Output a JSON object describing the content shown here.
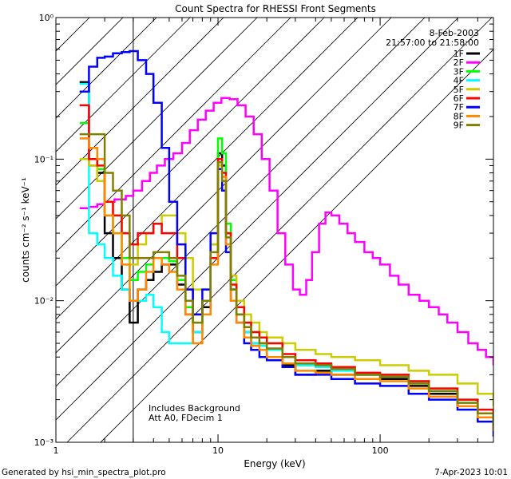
{
  "chart_data": {
    "type": "line",
    "title": "Count Spectra for RHESSI Front Segments",
    "xlabel": "Energy (keV)",
    "ylabel": "counts cm⁻² s⁻¹ keV⁻¹",
    "xscale": "log",
    "yscale": "log",
    "xlim": [
      1,
      500
    ],
    "ylim": [
      0.001,
      1
    ],
    "x_ticks": [
      {
        "value": 1,
        "label": "1"
      },
      {
        "value": 10,
        "label": "10"
      },
      {
        "value": 100,
        "label": "100"
      }
    ],
    "y_ticks": [
      {
        "value": 1,
        "label": "10⁰"
      },
      {
        "value": 0.1,
        "label": "10⁻¹"
      },
      {
        "value": 0.01,
        "label": "10⁻²"
      },
      {
        "value": 0.001,
        "label": "10⁻³"
      }
    ],
    "date": "8-Feb-2003",
    "time_range": "21:57:00 to 21:58:00",
    "annotations": [
      "Includes Background",
      "Att A0, FDecim 1"
    ],
    "excluded_region_keV": [
      1,
      3
    ],
    "legend_position": "top-right",
    "series": [
      {
        "name": "1F",
        "color": "#000000",
        "x": [
          1.4,
          1.6,
          1.8,
          2.0,
          2.25,
          2.55,
          2.85,
          3.2,
          3.6,
          4.0,
          4.5,
          5.0,
          5.6,
          6.3,
          7.0,
          8.0,
          9.0,
          10.0,
          10.6,
          11.2,
          12.0,
          13.0,
          14.5,
          16.0,
          18.0,
          20.0,
          25.0,
          30.0,
          40.0,
          50.0,
          70.0,
          100.0,
          150.0,
          200.0,
          300.0,
          400.0,
          500.0
        ],
        "y": [
          0.35,
          0.09,
          0.08,
          0.03,
          0.02,
          0.012,
          0.007,
          0.012,
          0.014,
          0.016,
          0.018,
          0.018,
          0.013,
          0.008,
          0.006,
          0.009,
          0.02,
          0.11,
          0.09,
          0.03,
          0.012,
          0.008,
          0.006,
          0.005,
          0.005,
          0.004,
          0.0035,
          0.003,
          0.0032,
          0.003,
          0.003,
          0.0028,
          0.0025,
          0.0022,
          0.0018,
          0.0015,
          0.0012
        ]
      },
      {
        "name": "2F",
        "color": "#ff00ff",
        "x": [
          1.4,
          1.6,
          1.8,
          2.0,
          2.3,
          2.7,
          3.0,
          3.4,
          3.8,
          4.2,
          4.7,
          5.3,
          6.0,
          6.7,
          7.5,
          8.4,
          9.4,
          10.5,
          11.8,
          13.2,
          14.8,
          16.6,
          18.6,
          20.8,
          23.3,
          26.0,
          29.0,
          32.0,
          35.0,
          38.0,
          42.0,
          46.0,
          50.0,
          56.0,
          63.0,
          70.0,
          80.0,
          90.0,
          100.0,
          115.0,
          130.0,
          150.0,
          175.0,
          200.0,
          230.0,
          260.0,
          300.0,
          350.0,
          400.0,
          450.0,
          500.0
        ],
        "y": [
          0.045,
          0.046,
          0.048,
          0.05,
          0.052,
          0.055,
          0.06,
          0.07,
          0.08,
          0.09,
          0.1,
          0.11,
          0.13,
          0.16,
          0.19,
          0.22,
          0.25,
          0.27,
          0.265,
          0.24,
          0.2,
          0.15,
          0.1,
          0.06,
          0.03,
          0.018,
          0.012,
          0.011,
          0.014,
          0.022,
          0.035,
          0.042,
          0.04,
          0.035,
          0.03,
          0.026,
          0.022,
          0.02,
          0.018,
          0.015,
          0.013,
          0.011,
          0.01,
          0.009,
          0.008,
          0.007,
          0.006,
          0.005,
          0.0045,
          0.004,
          0.0035
        ]
      },
      {
        "name": "3F",
        "color": "#00ff00",
        "x": [
          1.4,
          1.6,
          1.8,
          2.0,
          2.25,
          2.55,
          2.85,
          3.2,
          3.6,
          4.0,
          4.5,
          5.0,
          5.6,
          6.3,
          7.0,
          8.0,
          9.0,
          10.0,
          10.6,
          11.2,
          12.0,
          13.0,
          14.5,
          16.0,
          18.0,
          20.0,
          25.0,
          30.0,
          40.0,
          50.0,
          70.0,
          100.0,
          150.0,
          200.0,
          300.0,
          400.0,
          500.0
        ],
        "y": [
          0.18,
          0.1,
          0.085,
          0.04,
          0.03,
          0.02,
          0.014,
          0.016,
          0.018,
          0.02,
          0.02,
          0.019,
          0.014,
          0.009,
          0.007,
          0.01,
          0.025,
          0.14,
          0.11,
          0.035,
          0.014,
          0.009,
          0.007,
          0.006,
          0.0055,
          0.005,
          0.004,
          0.0035,
          0.0035,
          0.0033,
          0.003,
          0.003,
          0.0027,
          0.0024,
          0.002,
          0.0016,
          0.0013
        ]
      },
      {
        "name": "4F",
        "color": "#00ffff",
        "x": [
          1.4,
          1.6,
          1.8,
          2.0,
          2.25,
          2.55,
          2.85,
          3.2,
          3.6,
          4.0,
          4.5,
          5.0,
          5.6,
          6.3,
          7.0,
          8.0,
          9.0,
          10.0,
          10.6,
          11.2,
          12.0,
          13.0,
          14.5,
          16.0,
          18.0,
          20.0,
          25.0,
          30.0,
          40.0,
          50.0,
          70.0,
          100.0,
          150.0,
          200.0,
          300.0,
          400.0,
          500.0
        ],
        "y": [
          0.34,
          0.03,
          0.025,
          0.02,
          0.015,
          0.012,
          0.01,
          0.01,
          0.011,
          0.009,
          0.006,
          0.005,
          0.005,
          0.005,
          0.006,
          0.01,
          0.02,
          0.1,
          0.08,
          0.03,
          0.012,
          0.008,
          0.006,
          0.005,
          0.0048,
          0.0045,
          0.004,
          0.0035,
          0.0034,
          0.0032,
          0.003,
          0.0029,
          0.0026,
          0.0023,
          0.0019,
          0.0016,
          0.0013
        ]
      },
      {
        "name": "5F",
        "color": "#cccc00",
        "x": [
          1.4,
          1.6,
          1.8,
          2.0,
          2.25,
          2.55,
          2.85,
          3.2,
          3.6,
          4.0,
          4.5,
          5.0,
          5.6,
          6.3,
          7.0,
          8.0,
          9.0,
          10.0,
          10.6,
          11.2,
          12.0,
          13.0,
          14.5,
          16.0,
          18.0,
          20.0,
          25.0,
          30.0,
          40.0,
          50.0,
          70.0,
          100.0,
          150.0,
          200.0,
          300.0,
          400.0,
          500.0
        ],
        "y": [
          0.1,
          0.09,
          0.07,
          0.05,
          0.04,
          0.03,
          0.018,
          0.025,
          0.03,
          0.035,
          0.04,
          0.04,
          0.03,
          0.02,
          0.012,
          0.012,
          0.025,
          0.09,
          0.07,
          0.03,
          0.015,
          0.01,
          0.008,
          0.007,
          0.006,
          0.0055,
          0.005,
          0.0045,
          0.0042,
          0.004,
          0.0038,
          0.0035,
          0.0032,
          0.003,
          0.0026,
          0.0022,
          0.0018
        ]
      },
      {
        "name": "6F",
        "color": "#ff0000",
        "x": [
          1.4,
          1.6,
          1.8,
          2.0,
          2.25,
          2.55,
          2.85,
          3.2,
          3.6,
          4.0,
          4.5,
          5.0,
          5.6,
          6.3,
          7.0,
          8.0,
          9.0,
          10.0,
          10.6,
          11.2,
          12.0,
          13.0,
          14.5,
          16.0,
          18.0,
          20.0,
          25.0,
          30.0,
          40.0,
          50.0,
          70.0,
          100.0,
          150.0,
          200.0,
          300.0,
          400.0,
          500.0
        ],
        "y": [
          0.24,
          0.1,
          0.09,
          0.05,
          0.04,
          0.03,
          0.025,
          0.03,
          0.03,
          0.035,
          0.03,
          0.03,
          0.02,
          0.012,
          0.008,
          0.01,
          0.02,
          0.1,
          0.08,
          0.03,
          0.013,
          0.009,
          0.007,
          0.006,
          0.0055,
          0.005,
          0.0042,
          0.0038,
          0.0036,
          0.0034,
          0.0031,
          0.003,
          0.0027,
          0.0024,
          0.002,
          0.0017,
          0.0014
        ]
      },
      {
        "name": "7F",
        "color": "#0000ff",
        "x": [
          1.4,
          1.6,
          1.8,
          2.0,
          2.25,
          2.55,
          2.85,
          3.2,
          3.6,
          4.0,
          4.5,
          5.0,
          5.6,
          6.3,
          7.0,
          8.0,
          9.0,
          10.0,
          10.6,
          11.2,
          12.0,
          13.0,
          14.5,
          16.0,
          18.0,
          20.0,
          25.0,
          30.0,
          40.0,
          50.0,
          70.0,
          100.0,
          150.0,
          200.0,
          300.0,
          400.0,
          500.0
        ],
        "y": [
          0.3,
          0.45,
          0.52,
          0.53,
          0.56,
          0.57,
          0.58,
          0.5,
          0.4,
          0.25,
          0.12,
          0.05,
          0.025,
          0.012,
          0.008,
          0.012,
          0.03,
          0.085,
          0.06,
          0.022,
          0.01,
          0.007,
          0.005,
          0.0045,
          0.004,
          0.0038,
          0.0034,
          0.003,
          0.003,
          0.0028,
          0.0026,
          0.0025,
          0.0022,
          0.002,
          0.0017,
          0.0014,
          0.0011
        ]
      },
      {
        "name": "8F",
        "color": "#ff8800",
        "x": [
          1.4,
          1.6,
          1.8,
          2.0,
          2.25,
          2.55,
          2.85,
          3.2,
          3.6,
          4.0,
          4.5,
          5.0,
          5.6,
          6.3,
          7.0,
          8.0,
          9.0,
          10.0,
          10.6,
          11.2,
          12.0,
          13.0,
          14.5,
          16.0,
          18.0,
          20.0,
          25.0,
          30.0,
          40.0,
          50.0,
          70.0,
          100.0,
          150.0,
          200.0,
          300.0,
          400.0,
          500.0
        ],
        "y": [
          0.14,
          0.12,
          0.1,
          0.04,
          0.03,
          0.018,
          0.01,
          0.012,
          0.016,
          0.02,
          0.018,
          0.016,
          0.012,
          0.008,
          0.005,
          0.008,
          0.018,
          0.095,
          0.075,
          0.025,
          0.01,
          0.007,
          0.0055,
          0.0048,
          0.0045,
          0.004,
          0.0036,
          0.0032,
          0.0031,
          0.003,
          0.0028,
          0.0027,
          0.0024,
          0.0021,
          0.0018,
          0.0015,
          0.0012
        ]
      },
      {
        "name": "9F",
        "color": "#808000",
        "x": [
          1.4,
          1.6,
          1.8,
          2.0,
          2.25,
          2.55,
          2.85,
          3.2,
          3.6,
          4.0,
          4.5,
          5.0,
          5.6,
          6.3,
          7.0,
          8.0,
          9.0,
          10.0,
          10.6,
          11.2,
          12.0,
          13.0,
          14.5,
          16.0,
          18.0,
          20.0,
          25.0,
          30.0,
          40.0,
          50.0,
          70.0,
          100.0,
          150.0,
          200.0,
          300.0,
          400.0,
          500.0
        ],
        "y": [
          0.15,
          0.15,
          0.15,
          0.08,
          0.06,
          0.04,
          0.02,
          0.02,
          0.02,
          0.022,
          0.022,
          0.02,
          0.015,
          0.01,
          0.007,
          0.01,
          0.022,
          0.095,
          0.07,
          0.028,
          0.012,
          0.008,
          0.0065,
          0.0055,
          0.005,
          0.0046,
          0.004,
          0.0036,
          0.0035,
          0.0033,
          0.003,
          0.0029,
          0.0026,
          0.0023,
          0.0019,
          0.0016,
          0.0013
        ]
      }
    ]
  },
  "footer": {
    "generated_by": "Generated by hsi_min_spectra_plot.pro",
    "timestamp": "7-Apr-2023 10:01"
  }
}
